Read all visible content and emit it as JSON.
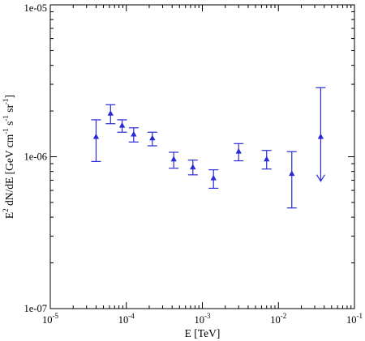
{
  "chart_data": {
    "type": "scatter",
    "xlabel": "E [TeV]",
    "ylabel": {
      "text": "E",
      "sup1": "2",
      "text2": " dN/dE [GeV cm",
      "sup2": "-1",
      "text3": " s",
      "sup3": "-1",
      "text4": " sr",
      "sup4": "-1",
      "text5": "]"
    },
    "xscale": "log",
    "yscale": "log",
    "xlim": [
      1e-05,
      0.1
    ],
    "ylim": [
      1e-07,
      1e-05
    ],
    "x_ticks": [
      {
        "value": 1e-05,
        "base": "10",
        "exp": "-5"
      },
      {
        "value": 0.0001,
        "base": "10",
        "exp": "-4"
      },
      {
        "value": 0.001,
        "base": "10",
        "exp": "-3"
      },
      {
        "value": 0.01,
        "base": "10",
        "exp": "-2"
      },
      {
        "value": 0.1,
        "base": "10",
        "exp": "-1"
      }
    ],
    "y_ticks": [
      {
        "value": 1e-07,
        "label": "1e-07"
      },
      {
        "value": 1e-06,
        "label": "1e-06"
      },
      {
        "value": 1e-05,
        "label": "1e-05"
      }
    ],
    "marker_color": "#2a2ad4",
    "points": [
      {
        "x": 4e-05,
        "y": 1.35e-06,
        "ylow": 9.3e-07,
        "yhigh": 1.75e-06
      },
      {
        "x": 6.2e-05,
        "y": 1.92e-06,
        "ylow": 1.65e-06,
        "yhigh": 2.2e-06
      },
      {
        "x": 8.8e-05,
        "y": 1.6e-06,
        "ylow": 1.45e-06,
        "yhigh": 1.75e-06
      },
      {
        "x": 0.000125,
        "y": 1.4e-06,
        "ylow": 1.25e-06,
        "yhigh": 1.55e-06
      },
      {
        "x": 0.00022,
        "y": 1.32e-06,
        "ylow": 1.18e-06,
        "yhigh": 1.45e-06
      },
      {
        "x": 0.00042,
        "y": 9.6e-07,
        "ylow": 8.4e-07,
        "yhigh": 1.07e-06
      },
      {
        "x": 0.00075,
        "y": 8.5e-07,
        "ylow": 7.6e-07,
        "yhigh": 9.5e-07
      },
      {
        "x": 0.0014,
        "y": 7.2e-07,
        "ylow": 6.2e-07,
        "yhigh": 8.2e-07
      },
      {
        "x": 0.003,
        "y": 1.08e-06,
        "ylow": 9.4e-07,
        "yhigh": 1.22e-06
      },
      {
        "x": 0.007,
        "y": 9.6e-07,
        "ylow": 8.3e-07,
        "yhigh": 1.1e-06
      },
      {
        "x": 0.015,
        "y": 7.7e-07,
        "ylow": 4.6e-07,
        "yhigh": 1.08e-06
      },
      {
        "x": 0.036,
        "y": 1.35e-06,
        "ylow": 6.9e-07,
        "yhigh": 2.85e-06,
        "upper_limit": true
      }
    ]
  }
}
